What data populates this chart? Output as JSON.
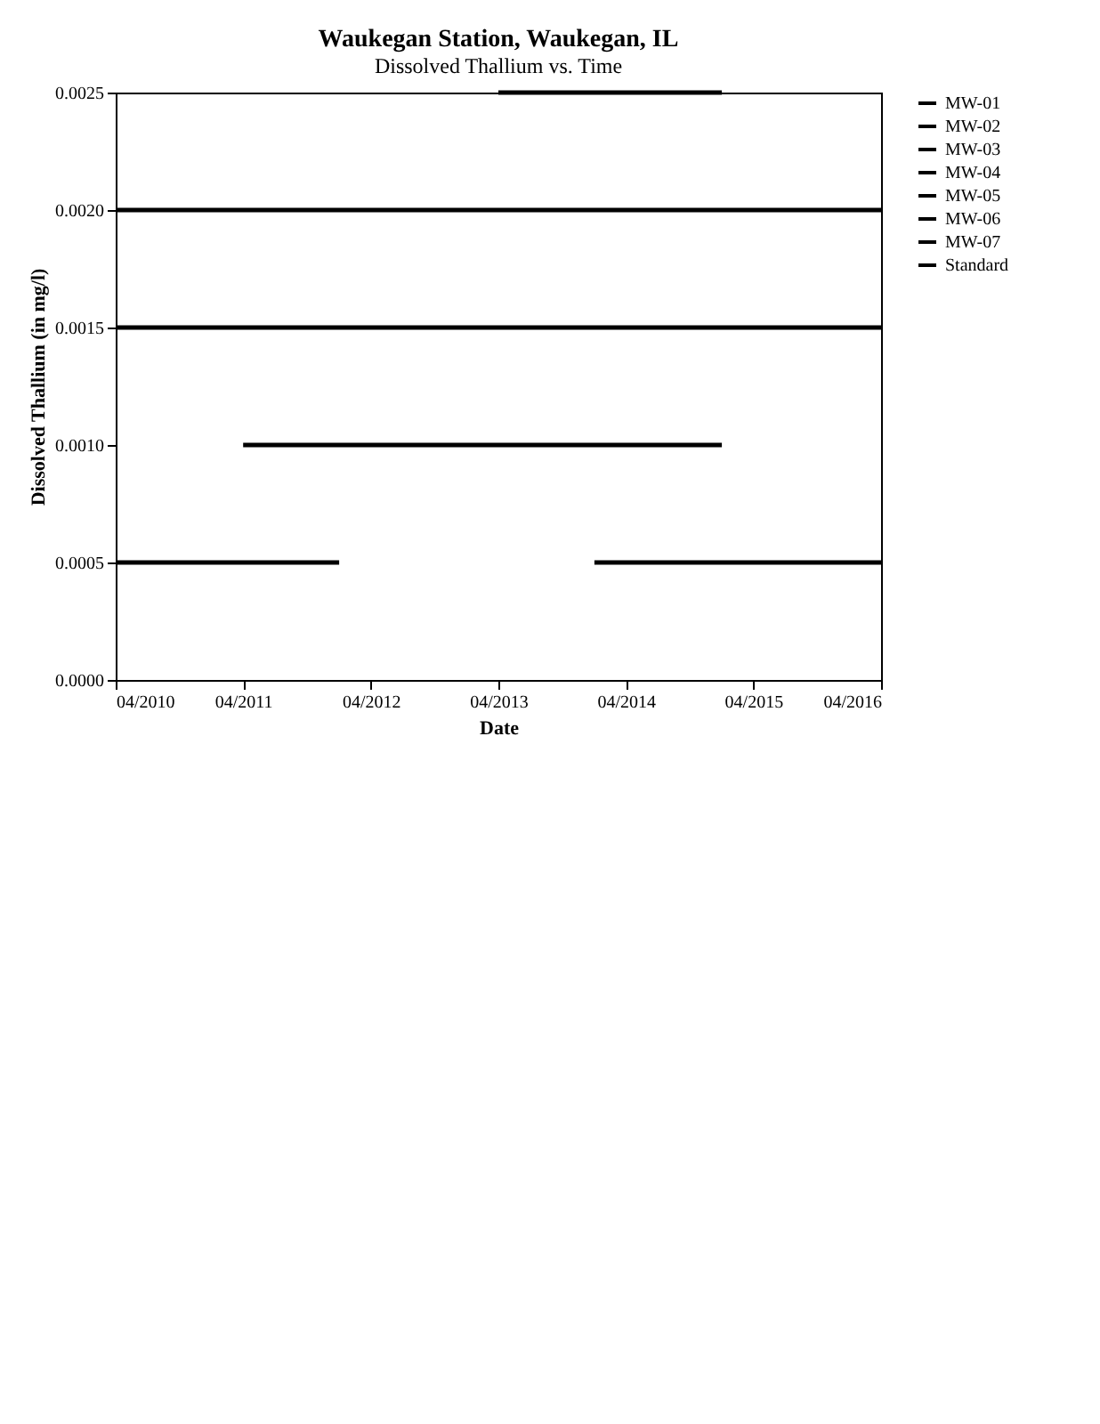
{
  "chart_data": {
    "type": "line",
    "title": "Waukegan Station, Waukegan, IL",
    "subtitle": "Dissolved Thallium vs. Time",
    "xlabel": "Date",
    "ylabel": "Dissolved Thallium (in mg/l)",
    "x": [
      "2010-04",
      "2010-07",
      "2010-10",
      "2011-01",
      "2011-04",
      "2011-07",
      "2011-10",
      "2012-01",
      "2012-04",
      "2012-07",
      "2012-10",
      "2013-01",
      "2013-04",
      "2013-07",
      "2013-10",
      "2014-01",
      "2014-04",
      "2014-07",
      "2014-10",
      "2015-01",
      "2015-04",
      "2015-07",
      "2015-10",
      "2016-01",
      "2016-04"
    ],
    "series": [
      {
        "name": "MW-01",
        "color": "#000000",
        "values": [
          null,
          null,
          null,
          null,
          null,
          null,
          null,
          null,
          null,
          null,
          null,
          null,
          0.0025,
          0.0025,
          0.0025,
          0.0025,
          0.0025,
          0.0025,
          0.0025,
          0.0025,
          null,
          null,
          null,
          null,
          null
        ]
      },
      {
        "name": "MW-02",
        "color": "#000000",
        "values": [
          0.0015,
          0.0015,
          0.0015,
          0.0015,
          0.0015,
          0.0015,
          0.0015,
          0.0015,
          0.0015,
          0.0015,
          0.0015,
          0.0015,
          0.0015,
          0.0015,
          0.0015,
          0.0015,
          0.0015,
          0.0015,
          0.0015,
          0.0015,
          0.0015,
          0.0015,
          0.0015,
          0.0015,
          0.0015
        ]
      },
      {
        "name": "MW-03",
        "color": "#000000",
        "values": [
          null,
          null,
          null,
          null,
          0.001,
          0.001,
          0.001,
          0.001,
          0.001,
          0.001,
          0.001,
          0.001,
          0.001,
          0.001,
          0.001,
          0.001,
          0.001,
          0.001,
          0.001,
          0.001,
          null,
          null,
          null,
          null,
          null
        ]
      },
      {
        "name": "MW-04",
        "color": "#000000",
        "values": [
          null,
          null,
          null,
          null,
          null,
          null,
          null,
          null,
          null,
          null,
          null,
          null,
          null,
          null,
          null,
          0.0005,
          0.0005,
          0.0005,
          0.0005,
          0.0005,
          0.0005,
          0.0005,
          0.0005,
          0.0005,
          0.0005
        ]
      },
      {
        "name": "MW-05",
        "color": "#000000",
        "values": [
          0.0005,
          0.0005,
          0.0005,
          0.0005,
          0.0005,
          0.0005,
          0.0005,
          0.0005,
          null,
          null,
          null,
          null,
          null,
          null,
          null,
          null,
          null,
          null,
          null,
          null,
          null,
          null,
          null,
          null,
          null
        ]
      },
      {
        "name": "MW-06",
        "color": "#000000",
        "values": [
          null,
          null,
          null,
          null,
          null,
          null,
          null,
          null,
          null,
          null,
          null,
          null,
          null,
          null,
          null,
          null,
          null,
          null,
          null,
          null,
          null,
          null,
          null,
          null,
          null
        ]
      },
      {
        "name": "MW-07",
        "color": "#000000",
        "values": [
          null,
          null,
          null,
          null,
          null,
          null,
          null,
          null,
          null,
          null,
          null,
          null,
          null,
          null,
          null,
          null,
          null,
          null,
          null,
          null,
          null,
          null,
          null,
          null,
          null
        ]
      },
      {
        "name": "Standard",
        "color": "#000000",
        "values": [
          0.002,
          0.002,
          0.002,
          0.002,
          0.002,
          0.002,
          0.002,
          0.002,
          0.002,
          0.002,
          0.002,
          0.002,
          0.002,
          0.002,
          0.002,
          0.002,
          0.002,
          0.002,
          0.002,
          0.002,
          0.002,
          0.002,
          0.002,
          0.002,
          0.002
        ]
      }
    ],
    "xlim": [
      "2010-04",
      "2016-04"
    ],
    "xticks": [
      {
        "value": "2010-04",
        "label": "04/2010"
      },
      {
        "value": "2011-04",
        "label": "04/2011"
      },
      {
        "value": "2012-04",
        "label": "04/2012"
      },
      {
        "value": "2013-04",
        "label": "04/2013"
      },
      {
        "value": "2014-04",
        "label": "04/2014"
      },
      {
        "value": "2015-04",
        "label": "04/2015"
      },
      {
        "value": "2016-04",
        "label": "04/2016"
      }
    ],
    "ylim": [
      0,
      0.0025
    ],
    "yticks": [
      {
        "value": 0,
        "label": "0.0000"
      },
      {
        "value": 0.0005,
        "label": "0.0005"
      },
      {
        "value": 0.001,
        "label": "0.0010"
      },
      {
        "value": 0.0015,
        "label": "0.0015"
      },
      {
        "value": 0.002,
        "label": "0.0020"
      },
      {
        "value": 0.0025,
        "label": "0.0025"
      }
    ],
    "legend": "right",
    "marker": "none",
    "line_style": "solid",
    "grid": false
  }
}
